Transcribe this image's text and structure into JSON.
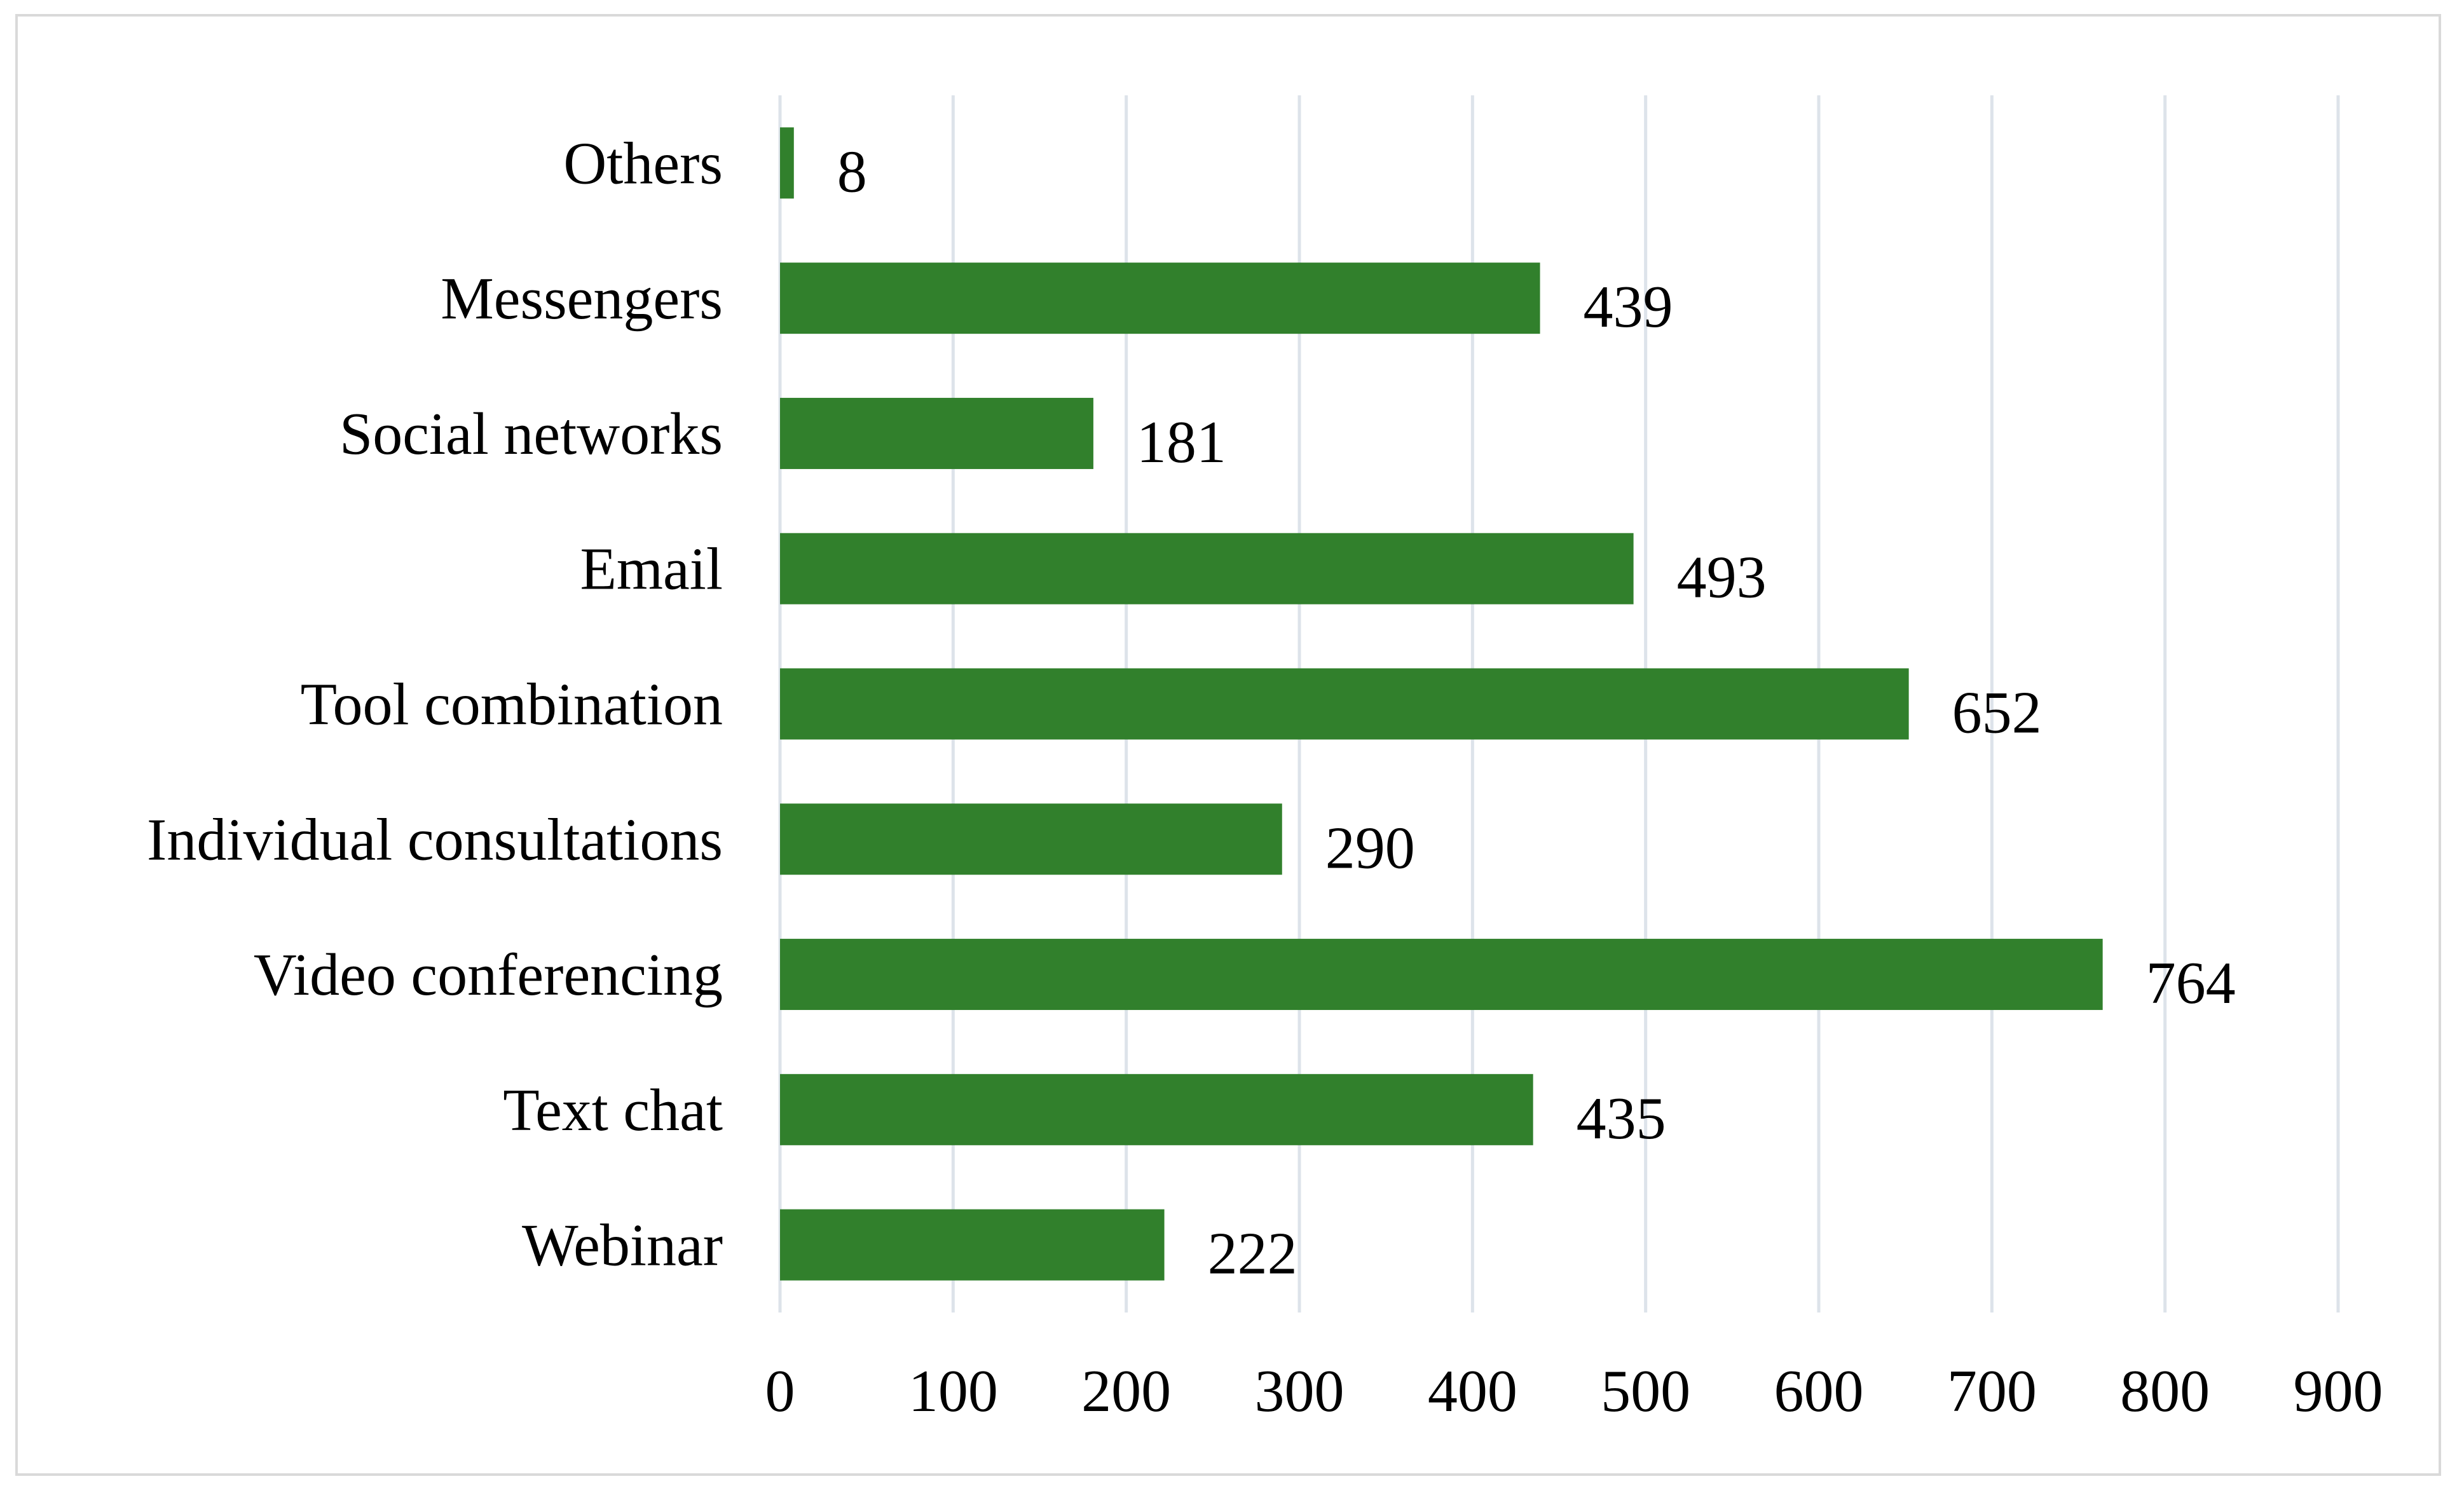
{
  "chart_data": {
    "type": "bar",
    "orientation": "horizontal",
    "categories": [
      "Others",
      "Messengers",
      "Social networks",
      "Email",
      "Tool combination",
      "Individual consultations",
      "Video conferencing",
      "Text chat",
      "Webinar"
    ],
    "values": [
      8,
      439,
      181,
      493,
      652,
      290,
      764,
      435,
      222
    ],
    "xticks": [
      "0",
      "100",
      "200",
      "300",
      "400",
      "500",
      "600",
      "700",
      "800",
      "900"
    ],
    "xlim": [
      0,
      900
    ],
    "grid": true,
    "legend": "none",
    "title": "",
    "xlabel": "",
    "ylabel": "",
    "bar_color": "#31802c",
    "grid_color": "#dde3ea"
  }
}
